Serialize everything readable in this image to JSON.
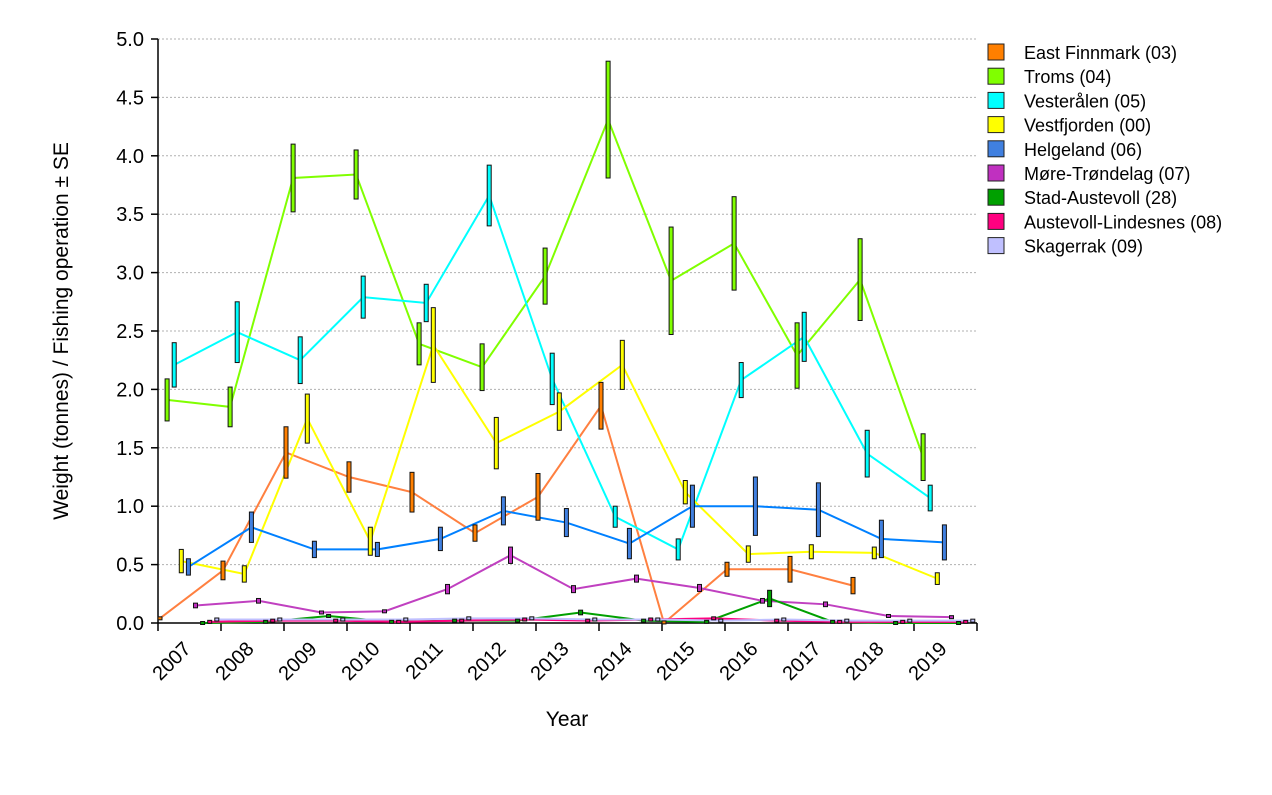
{
  "chart_data": {
    "type": "line",
    "title": "",
    "xlabel": "Year",
    "ylabel": "Weight (tonnes) / Fishing operation ± SE",
    "ylim": [
      0,
      5.0
    ],
    "yticks": [
      "0.0",
      "0.5",
      "1.0",
      "1.5",
      "2.0",
      "2.5",
      "3.0",
      "3.5",
      "4.0",
      "4.5",
      "5.0"
    ],
    "x": [
      "2007",
      "2008",
      "2009",
      "2010",
      "2011",
      "2012",
      "2013",
      "2014",
      "2015",
      "2016",
      "2017",
      "2018",
      "2019"
    ],
    "grid": "horizontal dotted",
    "legend_position": "top-right",
    "error_bars": "± SE",
    "series": [
      {
        "name": "East Finnmark (03)",
        "color": "#FF7F00",
        "line_color": "#FF8040",
        "values": [
          0.04,
          0.45,
          1.46,
          1.25,
          1.12,
          0.77,
          1.08,
          1.86,
          0.0,
          0.46,
          0.46,
          0.32,
          null
        ],
        "se": [
          0.01,
          0.08,
          0.22,
          0.13,
          0.17,
          0.07,
          0.2,
          0.2,
          0.01,
          0.06,
          0.11,
          0.07,
          null
        ]
      },
      {
        "name": "Troms (04)",
        "color": "#80FF00",
        "line_color": "#80FF00",
        "values": [
          1.91,
          1.85,
          3.81,
          3.84,
          2.39,
          2.19,
          2.97,
          4.31,
          2.93,
          3.25,
          2.29,
          2.94,
          1.42
        ],
        "se": [
          0.18,
          0.17,
          0.29,
          0.21,
          0.18,
          0.2,
          0.24,
          0.5,
          0.46,
          0.4,
          0.28,
          0.35,
          0.2
        ]
      },
      {
        "name": "Vesterålen (05)",
        "color": "#00FFFF",
        "line_color": "#00FFFF",
        "values": [
          2.21,
          2.49,
          2.25,
          2.79,
          2.74,
          3.66,
          2.09,
          0.91,
          0.63,
          2.08,
          2.45,
          1.45,
          1.07
        ],
        "se": [
          0.19,
          0.26,
          0.2,
          0.18,
          0.16,
          0.26,
          0.22,
          0.09,
          0.09,
          0.15,
          0.21,
          0.2,
          0.11
        ]
      },
      {
        "name": "Vestfjorden (00)",
        "color": "#FFFF00",
        "line_color": "#FFFF00",
        "values": [
          0.53,
          0.42,
          1.75,
          0.7,
          2.38,
          1.54,
          1.81,
          2.21,
          1.12,
          0.59,
          0.61,
          0.6,
          0.38
        ],
        "se": [
          0.1,
          0.07,
          0.21,
          0.12,
          0.32,
          0.22,
          0.16,
          0.21,
          0.1,
          0.07,
          0.06,
          0.05,
          0.05
        ]
      },
      {
        "name": "Helgeland (06)",
        "color": "#4080E0",
        "line_color": "#0080FF",
        "values": [
          0.48,
          0.82,
          0.63,
          0.63,
          0.72,
          0.96,
          0.86,
          0.68,
          1.0,
          1.0,
          0.97,
          0.72,
          0.69
        ],
        "se": [
          0.07,
          0.13,
          0.07,
          0.06,
          0.1,
          0.12,
          0.12,
          0.13,
          0.18,
          0.25,
          0.23,
          0.16,
          0.15
        ]
      },
      {
        "name": "Møre-Trøndelag (07)",
        "color": "#C030C0",
        "line_color": "#C040C0",
        "values": [
          0.15,
          0.19,
          0.09,
          0.1,
          0.29,
          0.58,
          0.29,
          0.38,
          0.3,
          0.19,
          0.16,
          0.06,
          0.05
        ],
        "se": [
          0.02,
          0.02,
          0.01,
          0.01,
          0.04,
          0.07,
          0.03,
          0.03,
          0.03,
          0.02,
          0.02,
          0.01,
          0.01
        ]
      },
      {
        "name": "Stad-Austevoll (28)",
        "color": "#00A000",
        "line_color": "#00A000",
        "values": [
          0.0,
          0.01,
          0.06,
          0.01,
          0.02,
          0.02,
          0.09,
          0.02,
          0.01,
          0.21,
          0.01,
          0.0,
          0.0
        ],
        "se": [
          0,
          0,
          0.01,
          0,
          0,
          0.01,
          0.02,
          0,
          0,
          0.07,
          0,
          0,
          0
        ]
      },
      {
        "name": "Austevoll-Lindesnes (08)",
        "color": "#FF0080",
        "line_color": "#FF0080",
        "values": [
          0.01,
          0.02,
          0.02,
          0.01,
          0.02,
          0.03,
          0.02,
          0.03,
          0.04,
          0.02,
          0.01,
          0.01,
          0.01
        ],
        "se": [
          0,
          0,
          0,
          0,
          0,
          0,
          0,
          0,
          0,
          0,
          0,
          0,
          0
        ]
      },
      {
        "name": "Skagerrak (09)",
        "color": "#C0C0FF",
        "line_color": "#C0C0FF",
        "values": [
          0.03,
          0.03,
          0.03,
          0.03,
          0.04,
          0.04,
          0.03,
          0.03,
          0.02,
          0.03,
          0.02,
          0.02,
          0.02
        ],
        "se": [
          0,
          0,
          0,
          0,
          0,
          0,
          0,
          0,
          0,
          0,
          0,
          0,
          0
        ]
      }
    ]
  }
}
